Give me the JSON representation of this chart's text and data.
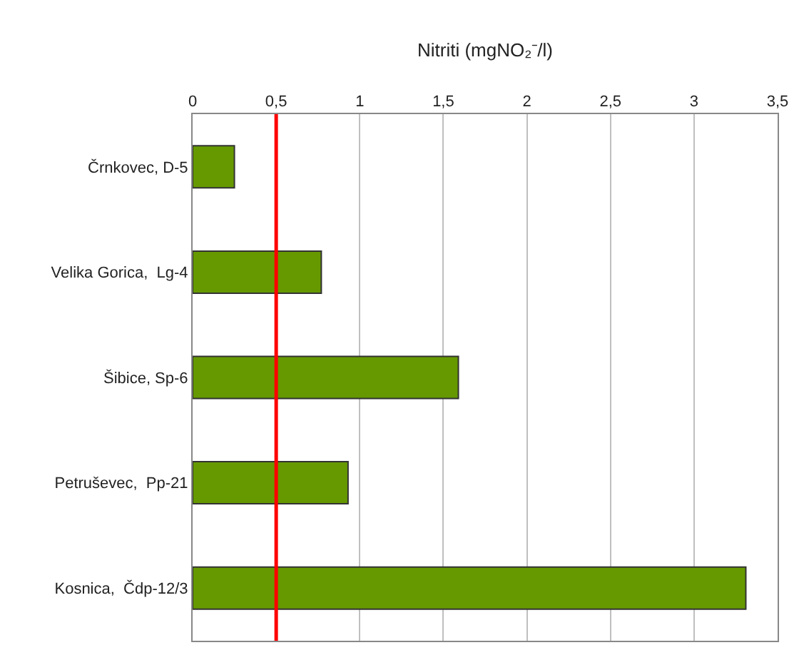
{
  "chart_data": {
    "type": "bar",
    "orientation": "horizontal",
    "xlabel": "Nitriti (mgNO₂⁻/l)",
    "categories": [
      "Črnkovec, D-5",
      "Velika Gorica,  Lg-4",
      "Šibice, Sp-6",
      "Petruševec,  Pp-21",
      "Kosnica,  Čdp-12/3"
    ],
    "values": [
      0.25,
      0.77,
      1.59,
      0.93,
      3.31
    ],
    "color": "#669900",
    "xlim": [
      0,
      3.5
    ],
    "xticks": [
      0,
      {
        "value": 0.5,
        "label": "0,5"
      },
      1,
      {
        "value": 1.5,
        "label": "1,5"
      },
      2,
      {
        "value": 2.5,
        "label": "2,5"
      },
      3,
      {
        "value": 3.5,
        "label": "3,5"
      }
    ],
    "grid": "x",
    "ref_lines": [
      {
        "axis": "x",
        "value": 0.5,
        "color": "#ff0000"
      }
    ]
  }
}
